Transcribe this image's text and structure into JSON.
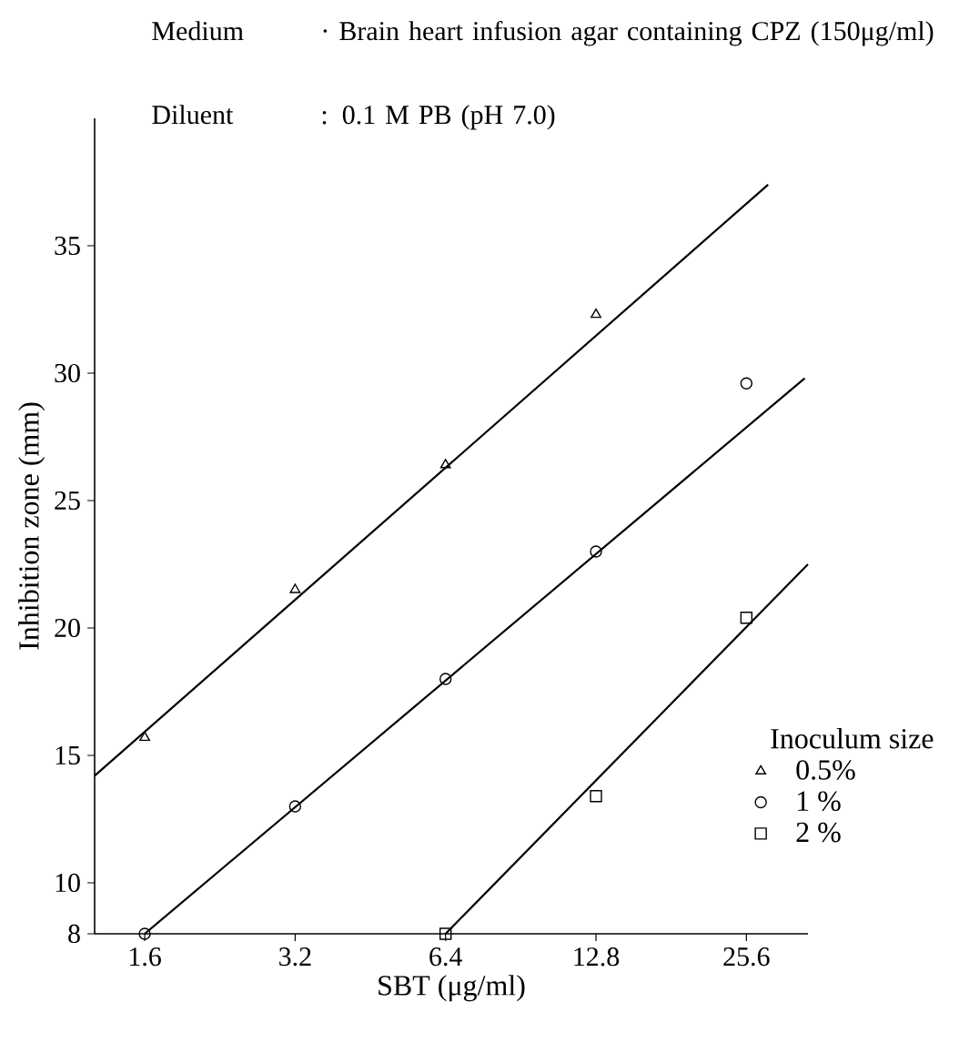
{
  "chart_data": {
    "type": "scatter",
    "annotations": [
      "Medium",
      "· Brain heart infusion agar containing CPZ (150μg/ml)",
      "Diluent",
      ": 0.1 M PB (pH 7.0)"
    ],
    "xlabel": "SBT (μg/ml)",
    "ylabel": "Inhibition zone (mm)",
    "legend_title": "Inoculum size",
    "log": "x",
    "xlim": [
      1.27,
      34
    ],
    "ylim": [
      8,
      40
    ],
    "xticks": [
      1.6,
      3.2,
      6.4,
      12.8,
      25.6
    ],
    "yticks": [
      8,
      10,
      15,
      20,
      25,
      30,
      35
    ],
    "grid": false,
    "legend": "bottom right",
    "series": [
      {
        "name": "0.5%",
        "marker": "triangle",
        "color": "#000000",
        "x": [
          1.6,
          3.2,
          6.4,
          12.8
        ],
        "values": [
          15.7,
          21.5,
          26.4,
          32.3
        ]
      },
      {
        "name": "1 %",
        "marker": "circle",
        "color": "#000000",
        "x": [
          1.6,
          3.2,
          6.4,
          12.8,
          25.6
        ],
        "values": [
          8,
          13,
          18,
          23,
          29.6
        ]
      },
      {
        "name": "2 %",
        "marker": "square",
        "color": "#000000",
        "x": [
          6.4,
          12.8,
          25.6
        ],
        "values": [
          8,
          13.4,
          20.4
        ]
      },
      {
        "type": "line",
        "marker": "none",
        "line_style": "solid",
        "color": "#000000",
        "x": [
          1.27,
          28.3
        ],
        "values": [
          14.2,
          37.4
        ]
      },
      {
        "type": "line",
        "marker": "none",
        "line_style": "solid",
        "color": "#000000",
        "x": [
          1.6,
          33.5
        ],
        "values": [
          8,
          29.8
        ]
      },
      {
        "type": "line",
        "marker": "none",
        "line_style": "solid",
        "color": "#000000",
        "x": [
          6.4,
          34
        ],
        "values": [
          8,
          22.5
        ]
      }
    ]
  }
}
